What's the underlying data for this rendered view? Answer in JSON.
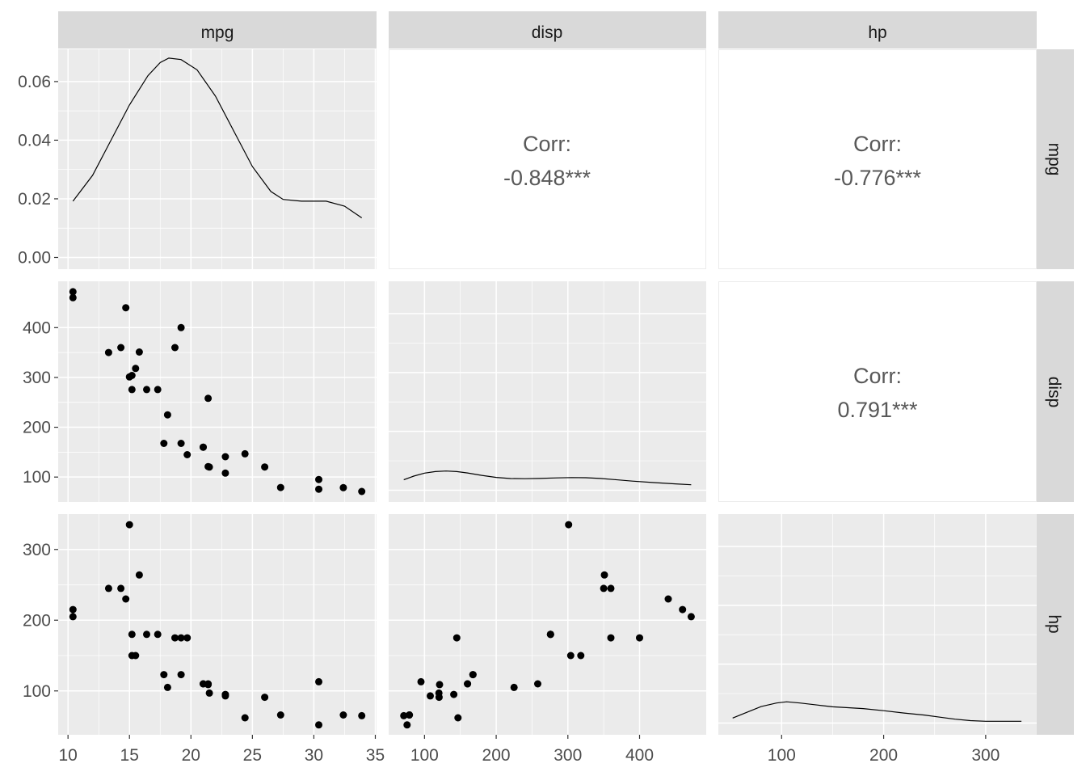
{
  "chart_data": {
    "type": "scatter-matrix",
    "variables": [
      "mpg",
      "disp",
      "hp"
    ],
    "strip_labels": {
      "top": [
        "mpg",
        "disp",
        "hp"
      ],
      "right": [
        "mpg",
        "disp",
        "hp"
      ]
    },
    "axes": {
      "mpg": {
        "lim": [
          9.2,
          35.1
        ],
        "ticks": [
          10,
          15,
          20,
          25,
          30,
          35
        ],
        "tick_labels": [
          "10",
          "15",
          "20",
          "25",
          "30",
          "35"
        ]
      },
      "disp": {
        "lim": [
          50,
          493
        ],
        "ticks": [
          100,
          200,
          300,
          400
        ],
        "tick_labels": [
          "100",
          "200",
          "300",
          "400"
        ]
      },
      "hp": {
        "lim": [
          38,
          350
        ],
        "ticks": [
          100,
          200,
          300
        ],
        "tick_labels": [
          "100",
          "200",
          "300"
        ]
      }
    },
    "density_axis": {
      "lim": [
        -0.004,
        0.071
      ],
      "ticks": [
        0,
        0.02,
        0.04,
        0.06
      ],
      "tick_labels": [
        "0.00",
        "0.02",
        "0.04",
        "0.06"
      ]
    },
    "grid": true,
    "correlations": [
      {
        "row": "mpg",
        "col": "disp",
        "label": "Corr:",
        "value": "-0.848***"
      },
      {
        "row": "mpg",
        "col": "hp",
        "label": "Corr:",
        "value": "-0.776***"
      },
      {
        "row": "disp",
        "col": "hp",
        "label": "Corr:",
        "value": "0.791***"
      }
    ],
    "densities": {
      "mpg": [
        [
          10.4,
          0.0192
        ],
        [
          12,
          0.028
        ],
        [
          13.5,
          0.04
        ],
        [
          15,
          0.052
        ],
        [
          16.5,
          0.062
        ],
        [
          17.5,
          0.0665
        ],
        [
          18.2,
          0.068
        ],
        [
          19.2,
          0.0675
        ],
        [
          20.5,
          0.064
        ],
        [
          22,
          0.055
        ],
        [
          23.5,
          0.043
        ],
        [
          25,
          0.031
        ],
        [
          26.5,
          0.0225
        ],
        [
          27.5,
          0.0198
        ],
        [
          29,
          0.0192
        ],
        [
          31,
          0.0192
        ],
        [
          32.5,
          0.0175
        ],
        [
          33.9,
          0.0135
        ]
      ],
      "disp": [
        [
          71.1,
          0.00356
        ],
        [
          85,
          0.0048
        ],
        [
          100,
          0.0058
        ],
        [
          115,
          0.00632
        ],
        [
          130,
          0.00652
        ],
        [
          145,
          0.00632
        ],
        [
          160,
          0.00585
        ],
        [
          180,
          0.00505
        ],
        [
          200,
          0.00435
        ],
        [
          220,
          0.00398
        ],
        [
          240,
          0.0039
        ],
        [
          260,
          0.004
        ],
        [
          285,
          0.0042
        ],
        [
          305,
          0.0043
        ],
        [
          325,
          0.00425
        ],
        [
          345,
          0.004
        ],
        [
          365,
          0.0036
        ],
        [
          390,
          0.0031
        ],
        [
          420,
          0.0026
        ],
        [
          450,
          0.00215
        ],
        [
          472,
          0.00185
        ]
      ],
      "hp": [
        [
          52,
          0.0017
        ],
        [
          65,
          0.0035
        ],
        [
          80,
          0.0056
        ],
        [
          95,
          0.0068
        ],
        [
          105,
          0.0072
        ],
        [
          118,
          0.0068
        ],
        [
          135,
          0.0061
        ],
        [
          150,
          0.0055
        ],
        [
          165,
          0.0052
        ],
        [
          180,
          0.0049
        ],
        [
          200,
          0.0042
        ],
        [
          220,
          0.0034
        ],
        [
          240,
          0.0027
        ],
        [
          255,
          0.002
        ],
        [
          270,
          0.0013
        ],
        [
          285,
          0.0008
        ],
        [
          300,
          0.0006
        ],
        [
          325,
          0.0006
        ],
        [
          335,
          0.0006
        ]
      ]
    },
    "points": [
      {
        "mpg": 10.4,
        "disp": 472,
        "hp": 205
      },
      {
        "mpg": 10.4,
        "disp": 460,
        "hp": 215
      },
      {
        "mpg": 13.3,
        "disp": 350,
        "hp": 245
      },
      {
        "mpg": 14.3,
        "disp": 360,
        "hp": 245
      },
      {
        "mpg": 14.7,
        "disp": 440,
        "hp": 230
      },
      {
        "mpg": 15.0,
        "disp": 301,
        "hp": 335
      },
      {
        "mpg": 15.2,
        "disp": 304,
        "hp": 150
      },
      {
        "mpg": 15.2,
        "disp": 275.8,
        "hp": 180
      },
      {
        "mpg": 15.5,
        "disp": 318,
        "hp": 150
      },
      {
        "mpg": 15.8,
        "disp": 351,
        "hp": 264
      },
      {
        "mpg": 16.4,
        "disp": 275.8,
        "hp": 180
      },
      {
        "mpg": 17.3,
        "disp": 275.8,
        "hp": 180
      },
      {
        "mpg": 17.8,
        "disp": 167.6,
        "hp": 123
      },
      {
        "mpg": 18.1,
        "disp": 225,
        "hp": 105
      },
      {
        "mpg": 18.7,
        "disp": 360,
        "hp": 175
      },
      {
        "mpg": 19.2,
        "disp": 167.6,
        "hp": 123
      },
      {
        "mpg": 19.2,
        "disp": 400,
        "hp": 175
      },
      {
        "mpg": 19.7,
        "disp": 145,
        "hp": 175
      },
      {
        "mpg": 21.0,
        "disp": 160,
        "hp": 110
      },
      {
        "mpg": 21.0,
        "disp": 160,
        "hp": 110
      },
      {
        "mpg": 21.4,
        "disp": 258,
        "hp": 110
      },
      {
        "mpg": 21.4,
        "disp": 121,
        "hp": 109
      },
      {
        "mpg": 21.5,
        "disp": 120.1,
        "hp": 97
      },
      {
        "mpg": 22.8,
        "disp": 108,
        "hp": 93
      },
      {
        "mpg": 22.8,
        "disp": 140.8,
        "hp": 95
      },
      {
        "mpg": 24.4,
        "disp": 146.7,
        "hp": 62
      },
      {
        "mpg": 26.0,
        "disp": 120.3,
        "hp": 91
      },
      {
        "mpg": 27.3,
        "disp": 79,
        "hp": 66
      },
      {
        "mpg": 30.4,
        "disp": 75.7,
        "hp": 52
      },
      {
        "mpg": 30.4,
        "disp": 95.1,
        "hp": 113
      },
      {
        "mpg": 32.4,
        "disp": 78.7,
        "hp": 66
      },
      {
        "mpg": 33.9,
        "disp": 71.1,
        "hp": 65
      }
    ]
  }
}
